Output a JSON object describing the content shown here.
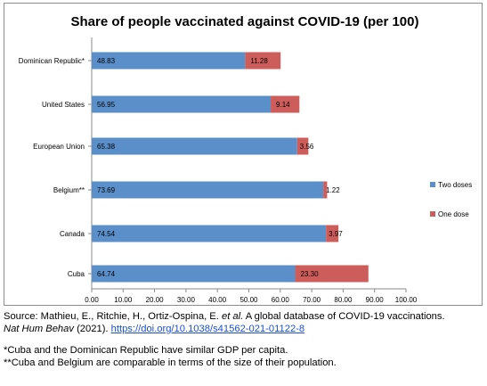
{
  "chart_data": {
    "type": "bar",
    "orientation": "horizontal",
    "stacked": true,
    "title": "Share of people vaccinated against COVID-19 (per 100)",
    "categories": [
      "Dominican Republic*",
      "United States",
      "European Union",
      "Belgium**",
      "Canada",
      "Cuba"
    ],
    "series": [
      {
        "name": "Two doses",
        "color": "#5b8fc9",
        "values": [
          48.83,
          56.95,
          65.38,
          73.69,
          74.54,
          64.74
        ],
        "labels": [
          "48.83",
          "56.95",
          "65.38",
          "73.69",
          "74.54",
          "64.74"
        ]
      },
      {
        "name": "One dose",
        "color": "#cd5d5a",
        "values": [
          11.28,
          9.14,
          3.56,
          1.22,
          3.97,
          23.3
        ],
        "labels": [
          "11.28",
          "9.14",
          "3.56",
          "1.22",
          "3.97",
          "23.30"
        ]
      }
    ],
    "xlim": [
      0,
      100
    ],
    "xticks": [
      "0.00",
      "10.00",
      "20.00",
      "30.00",
      "40.00",
      "50.00",
      "60.00",
      "70.00",
      "80.00",
      "90.00",
      "100.00"
    ],
    "legend_position": "right",
    "grid": false
  },
  "caption": {
    "source_prefix": "Source: Mathieu, E., Ritchie, H., Ortiz-Ospina, E. ",
    "source_etal": "et al.",
    "source_mid": " A global database of COVID-19 vaccinations.",
    "journal": "Nat Hum Behav",
    "journal_year": " (2021). ",
    "doi": "https://doi.org/10.1038/s41562-021-01122-8",
    "note1": "*Cuba and the Dominican Republic have similar GDP per capita.",
    "note2": "**Cuba and Belgium are comparable in terms of the size of their population."
  }
}
